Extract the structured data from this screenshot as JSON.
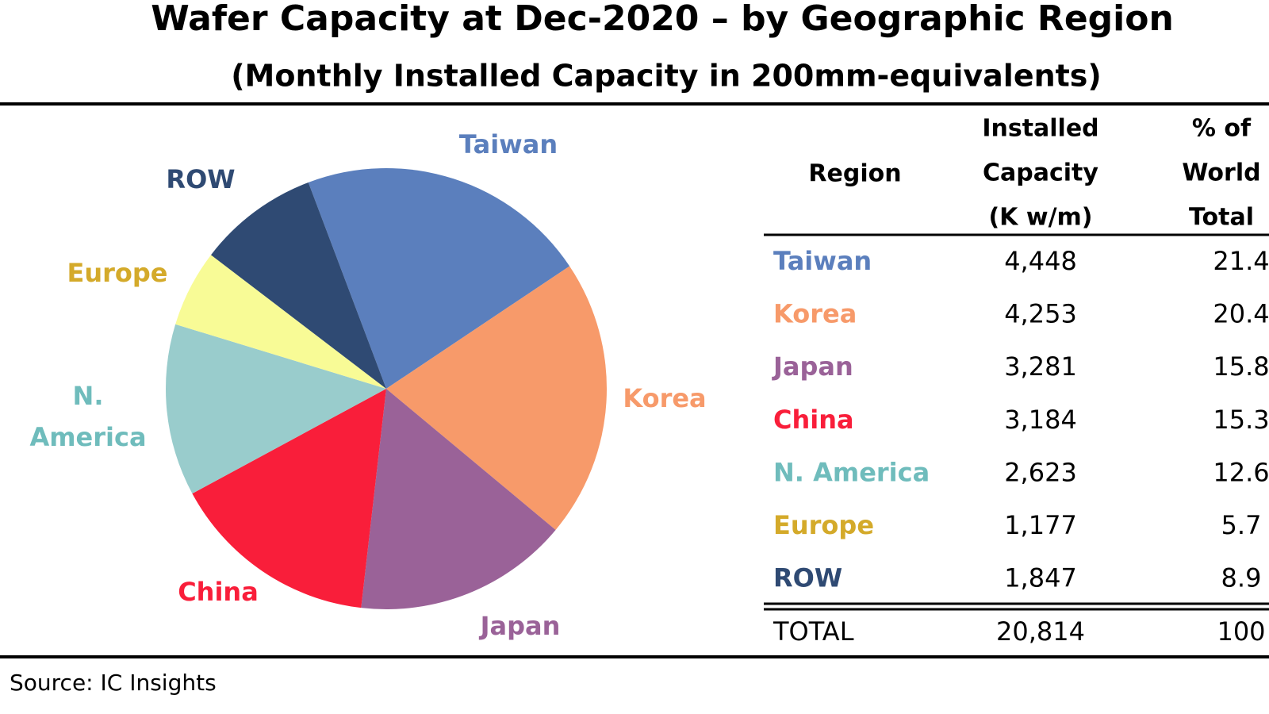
{
  "chart_data": {
    "type": "pie",
    "title": "Wafer Capacity at Dec-2020 – by Geographic Region",
    "subtitle": "(Monthly Installed Capacity in 200mm-equivalents)",
    "categories": [
      "Taiwan",
      "Korea",
      "Japan",
      "China",
      "N. America",
      "Europe",
      "ROW"
    ],
    "values": [
      4448,
      4253,
      3281,
      3184,
      2623,
      1177,
      1847
    ],
    "value_labels": [
      "4,448",
      "4,253",
      "3,281",
      "3,184",
      "2,623",
      "1,177",
      "1,847"
    ],
    "shares": [
      21.4,
      20.4,
      15.8,
      15.3,
      12.6,
      5.7,
      8.9
    ],
    "colors": [
      "#5b7fbd",
      "#f79a6a",
      "#9a6298",
      "#f91e3a",
      "#99cccc",
      "#f8fb96",
      "#2f4a73"
    ],
    "label_colors": [
      "#5b7fbd",
      "#f79a6a",
      "#9a6298",
      "#f91e3a",
      "#6fbcbc",
      "#d4aa2a",
      "#2f4a73"
    ],
    "table_headers": [
      [
        "Region"
      ],
      [
        "Installed",
        "Capacity",
        "(K w/m)"
      ],
      [
        "% of",
        "World",
        "Total"
      ]
    ],
    "total": {
      "label": "TOTAL",
      "value": 20814,
      "value_label": "20,814",
      "share": 100
    },
    "source": "Source:  IC Insights"
  }
}
